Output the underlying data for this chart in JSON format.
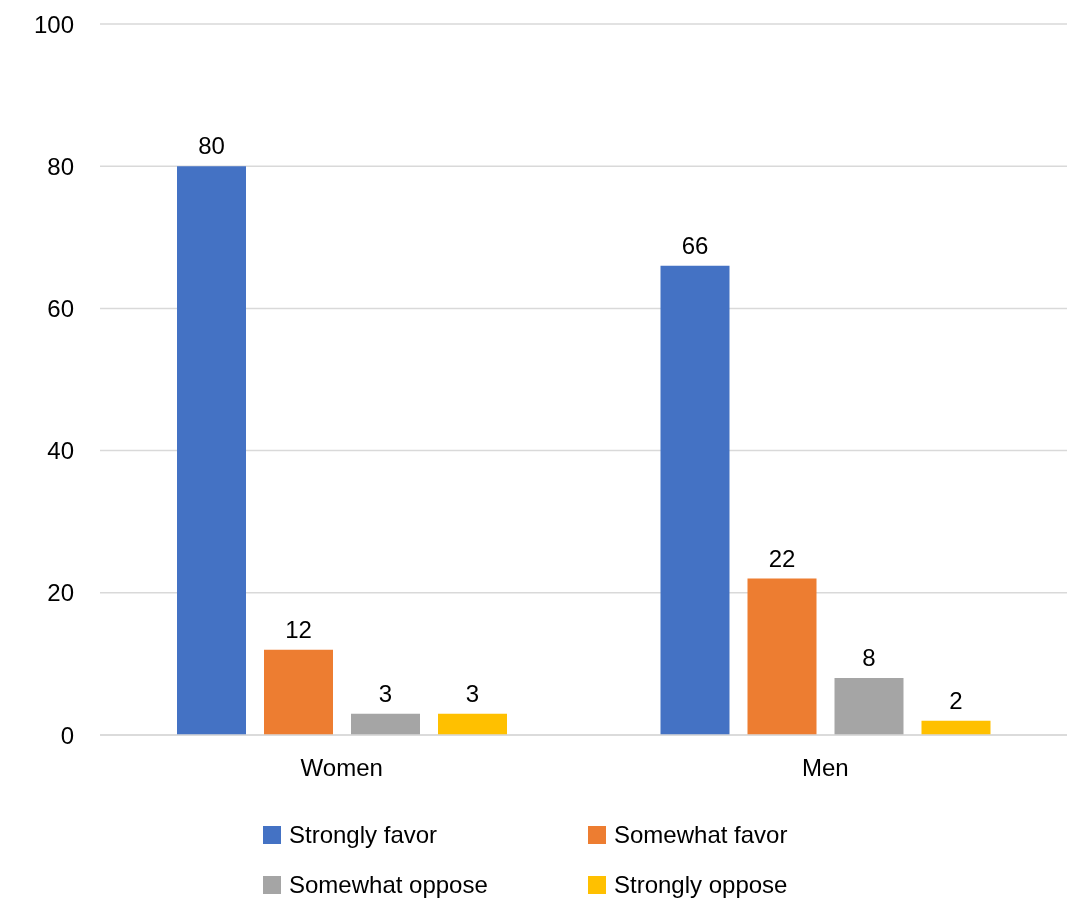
{
  "chart_data": {
    "type": "bar",
    "categories": [
      "Women",
      "Men"
    ],
    "series": [
      {
        "name": "Strongly favor",
        "color": "#4472c4",
        "values": [
          80,
          66
        ]
      },
      {
        "name": "Somewhat favor",
        "color": "#ed7d31",
        "values": [
          12,
          22
        ]
      },
      {
        "name": "Somewhat oppose",
        "color": "#a5a5a5",
        "values": [
          3,
          8
        ]
      },
      {
        "name": "Strongly oppose",
        "color": "#ffc000",
        "values": [
          3,
          2
        ]
      }
    ],
    "ylim": [
      0,
      100
    ],
    "yticks": [
      0,
      20,
      40,
      60,
      80,
      100
    ],
    "grid": "y",
    "legend": "bottom",
    "data_labels": true
  }
}
